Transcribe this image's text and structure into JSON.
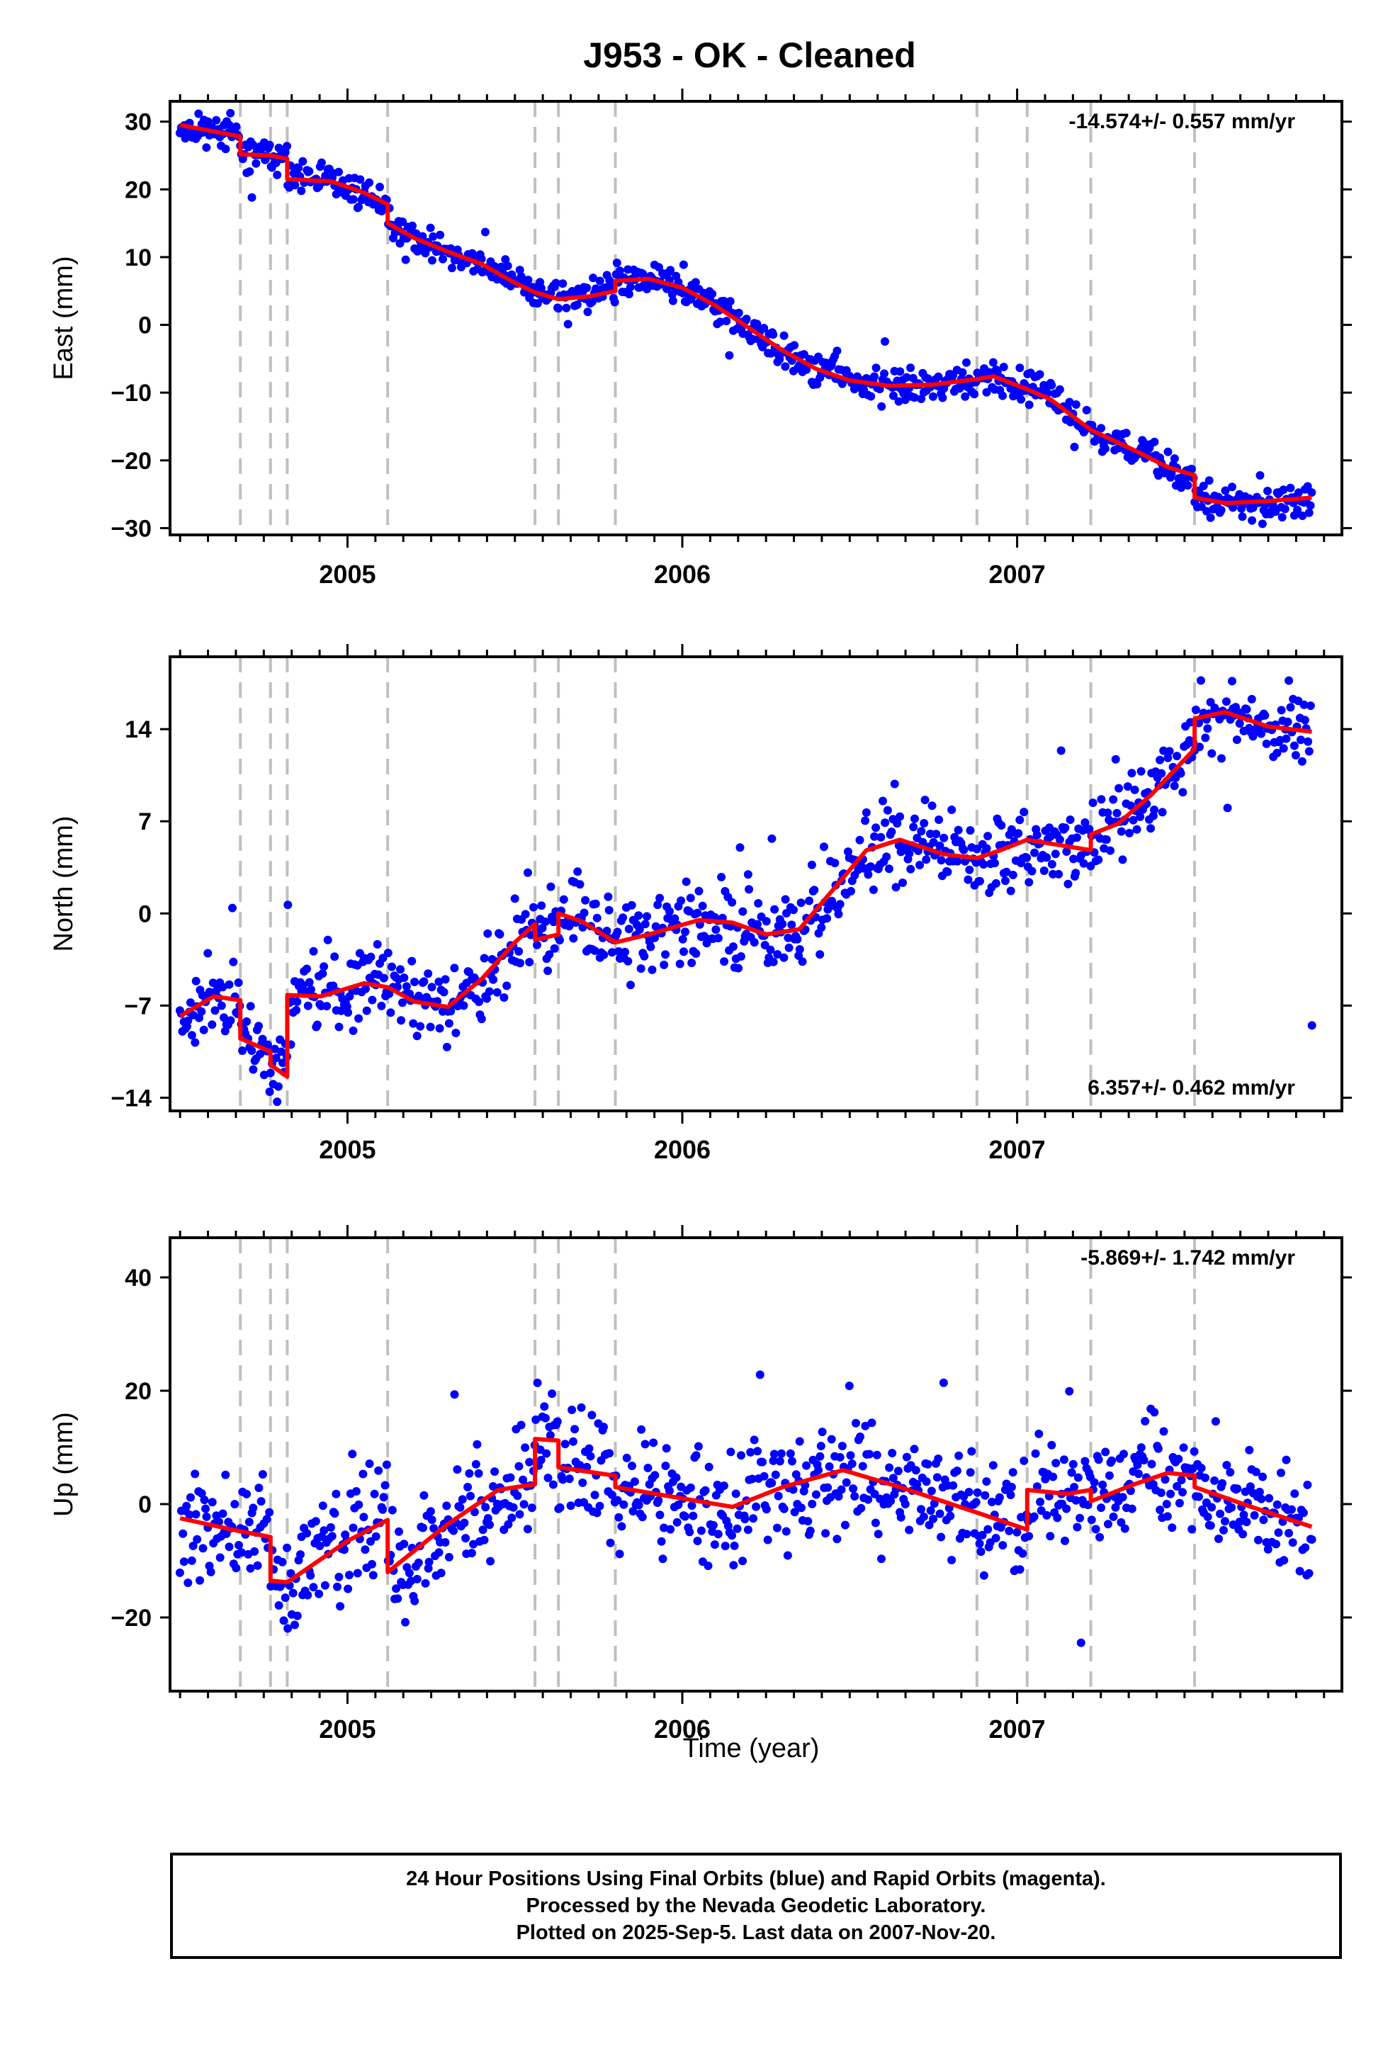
{
  "title": "J953  - OK - Cleaned",
  "x_axis_label": "Time (year)",
  "footer": {
    "line1": "24 Hour Positions Using Final Orbits (blue) and Rapid Orbits (magenta).",
    "line2": "Processed by the Nevada Geodetic Laboratory.",
    "line3": "Plotted on 2025-Sep-5. Last data on 2007-Nov-20."
  },
  "colors": {
    "data_points": "#0000ff",
    "model_fit": "#ff0000",
    "event_lines": "#c0c0c0"
  },
  "chart_data": [
    {
      "type": "scatter",
      "ylabel": "East (mm)",
      "rate_text": "-14.574+/- 0.557 mm/yr",
      "rate_position": "top-right",
      "xlim": [
        2004.47,
        2007.97
      ],
      "ylim": [
        -31,
        33
      ],
      "yticks": [
        -30,
        -20,
        -10,
        0,
        10,
        20,
        30
      ],
      "xticks": [
        2005,
        2006,
        2007
      ],
      "event_lines": [
        2004.68,
        2004.77,
        2004.82,
        2005.12,
        2005.56,
        2005.63,
        2005.8,
        2006.88,
        2007.03,
        2007.22,
        2007.53
      ],
      "model": [
        [
          2004.5,
          29.5
        ],
        [
          2004.68,
          27.8
        ],
        [
          2004.68,
          25.2
        ],
        [
          2004.77,
          25.0
        ],
        [
          2004.81,
          24.6
        ],
        [
          2004.82,
          24.5
        ],
        [
          2004.82,
          21.5
        ],
        [
          2004.95,
          21.2
        ],
        [
          2005.05,
          19.5
        ],
        [
          2005.12,
          17.8
        ],
        [
          2005.12,
          15.0
        ],
        [
          2005.2,
          12.8
        ],
        [
          2005.3,
          10.8
        ],
        [
          2005.4,
          9.0
        ],
        [
          2005.5,
          6.2
        ],
        [
          2005.56,
          4.8
        ],
        [
          2005.63,
          3.8
        ],
        [
          2005.72,
          4.2
        ],
        [
          2005.8,
          5.0
        ],
        [
          2005.8,
          6.5
        ],
        [
          2005.9,
          6.8
        ],
        [
          2006.0,
          5.5
        ],
        [
          2006.1,
          2.8
        ],
        [
          2006.2,
          -0.5
        ],
        [
          2006.3,
          -3.8
        ],
        [
          2006.4,
          -6.5
        ],
        [
          2006.5,
          -8.2
        ],
        [
          2006.62,
          -9.0
        ],
        [
          2006.75,
          -8.8
        ],
        [
          2006.88,
          -8.0
        ],
        [
          2006.93,
          -7.6
        ],
        [
          2007.03,
          -9.5
        ],
        [
          2007.1,
          -11.0
        ],
        [
          2007.22,
          -15.5
        ],
        [
          2007.35,
          -18.5
        ],
        [
          2007.45,
          -21.0
        ],
        [
          2007.53,
          -22.2
        ],
        [
          2007.53,
          -25.5
        ],
        [
          2007.62,
          -26.3
        ],
        [
          2007.75,
          -26.0
        ],
        [
          2007.88,
          -25.5
        ]
      ],
      "gen": {
        "x0": 2004.5,
        "x1": 2007.88,
        "n": 850,
        "noise": 1.2,
        "outlier": 0.01,
        "outamp": 4,
        "seed": 11
      }
    },
    {
      "type": "scatter",
      "ylabel": "North (mm)",
      "rate_text": "6.357+/- 0.462 mm/yr",
      "rate_position": "bottom-right",
      "xlim": [
        2004.47,
        2007.97
      ],
      "ylim": [
        -15,
        19.5
      ],
      "yticks": [
        -14,
        -7,
        0,
        7,
        14
      ],
      "xticks": [
        2005,
        2006,
        2007
      ],
      "event_lines": [
        2004.68,
        2004.77,
        2004.82,
        2005.12,
        2005.56,
        2005.63,
        2005.8,
        2006.88,
        2007.03,
        2007.22,
        2007.53
      ],
      "model": [
        [
          2004.5,
          -7.8
        ],
        [
          2004.6,
          -6.3
        ],
        [
          2004.68,
          -6.6
        ],
        [
          2004.68,
          -9.5
        ],
        [
          2004.77,
          -10.5
        ],
        [
          2004.77,
          -11.5
        ],
        [
          2004.82,
          -12.4
        ],
        [
          2004.82,
          -6.2
        ],
        [
          2004.92,
          -6.3
        ],
        [
          2005.05,
          -5.3
        ],
        [
          2005.12,
          -5.6
        ],
        [
          2005.2,
          -6.7
        ],
        [
          2005.3,
          -7.1
        ],
        [
          2005.4,
          -5.0
        ],
        [
          2005.5,
          -2.2
        ],
        [
          2005.56,
          -0.8
        ],
        [
          2005.56,
          -2.0
        ],
        [
          2005.63,
          -1.6
        ],
        [
          2005.63,
          0.0
        ],
        [
          2005.7,
          -0.6
        ],
        [
          2005.8,
          -2.2
        ],
        [
          2005.9,
          -1.6
        ],
        [
          2006.05,
          -0.5
        ],
        [
          2006.15,
          -0.7
        ],
        [
          2006.25,
          -1.6
        ],
        [
          2006.35,
          -1.2
        ],
        [
          2006.45,
          1.8
        ],
        [
          2006.55,
          4.8
        ],
        [
          2006.65,
          5.6
        ],
        [
          2006.78,
          4.5
        ],
        [
          2006.88,
          4.2
        ],
        [
          2006.95,
          4.8
        ],
        [
          2007.03,
          5.6
        ],
        [
          2007.1,
          5.3
        ],
        [
          2007.22,
          4.8
        ],
        [
          2007.22,
          6.0
        ],
        [
          2007.3,
          6.8
        ],
        [
          2007.4,
          9.0
        ],
        [
          2007.53,
          12.5
        ],
        [
          2007.53,
          14.8
        ],
        [
          2007.62,
          15.3
        ],
        [
          2007.75,
          14.2
        ],
        [
          2007.88,
          13.8
        ]
      ],
      "gen": {
        "x0": 2004.5,
        "x1": 2007.88,
        "n": 850,
        "noise": 1.5,
        "outlier": 0.012,
        "outamp": 5,
        "seed": 23
      }
    },
    {
      "type": "scatter",
      "ylabel": "Up (mm)",
      "rate_text": "-5.869+/- 1.742 mm/yr",
      "rate_position": "top-right",
      "xlim": [
        2004.47,
        2007.97
      ],
      "ylim": [
        -33,
        47
      ],
      "yticks": [
        -20,
        0,
        20,
        40
      ],
      "xticks": [
        2005,
        2006,
        2007
      ],
      "event_lines": [
        2004.68,
        2004.77,
        2004.82,
        2005.12,
        2005.56,
        2005.63,
        2005.8,
        2006.88,
        2007.03,
        2007.22,
        2007.53
      ],
      "model": [
        [
          2004.5,
          -2.5
        ],
        [
          2004.68,
          -4.8
        ],
        [
          2004.77,
          -5.8
        ],
        [
          2004.77,
          -13.5
        ],
        [
          2004.82,
          -13.8
        ],
        [
          2005.0,
          -6.5
        ],
        [
          2005.12,
          -2.8
        ],
        [
          2005.12,
          -12.0
        ],
        [
          2005.3,
          -3.5
        ],
        [
          2005.45,
          2.5
        ],
        [
          2005.56,
          3.5
        ],
        [
          2005.56,
          11.5
        ],
        [
          2005.63,
          11.2
        ],
        [
          2005.63,
          6.5
        ],
        [
          2005.8,
          5.0
        ],
        [
          2005.8,
          3.0
        ],
        [
          2006.0,
          1.0
        ],
        [
          2006.15,
          -0.5
        ],
        [
          2006.3,
          3.0
        ],
        [
          2006.48,
          6.0
        ],
        [
          2006.65,
          3.0
        ],
        [
          2006.88,
          -1.5
        ],
        [
          2007.03,
          -4.5
        ],
        [
          2007.03,
          2.5
        ],
        [
          2007.15,
          1.8
        ],
        [
          2007.22,
          2.5
        ],
        [
          2007.22,
          0.5
        ],
        [
          2007.35,
          3.5
        ],
        [
          2007.45,
          5.5
        ],
        [
          2007.53,
          5.0
        ],
        [
          2007.53,
          3.0
        ],
        [
          2007.7,
          -0.5
        ],
        [
          2007.88,
          -4.0
        ]
      ],
      "gen": {
        "x0": 2004.5,
        "x1": 2007.88,
        "n": 850,
        "noise": 5.0,
        "outlier": 0.015,
        "outamp": 12,
        "seed": 37
      }
    }
  ]
}
